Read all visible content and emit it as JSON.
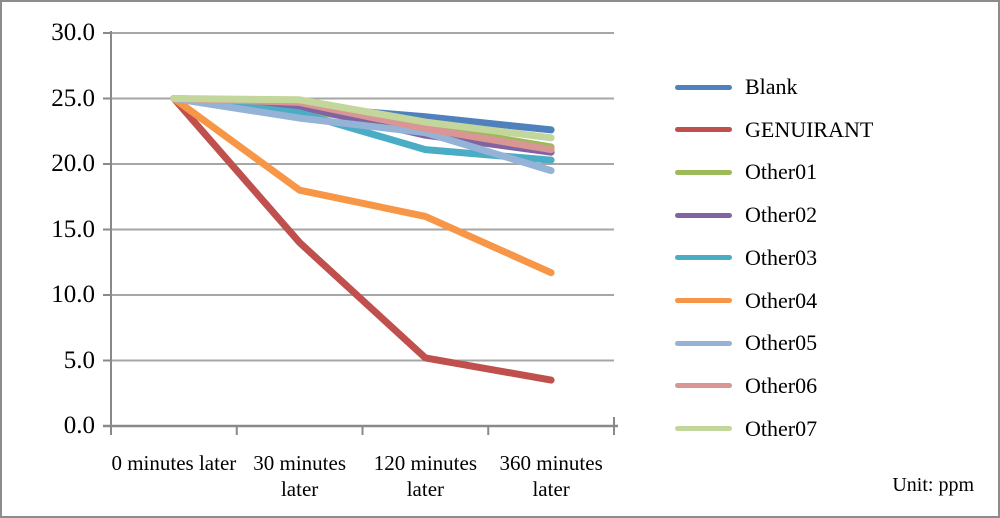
{
  "chart_data": {
    "type": "line",
    "title": "",
    "unit_note": "Unit: ppm",
    "categories": [
      "0 minutes later",
      "30 minutes later",
      "120 minutes later",
      "360 minutes later"
    ],
    "xlabel": "",
    "ylabel": "",
    "ylim": [
      0,
      30
    ],
    "y_ticks": [
      30,
      25,
      20,
      15,
      10,
      5,
      0
    ],
    "y_tick_labels": [
      "30.0",
      "25.0",
      "20.0",
      "15.0",
      "10.0",
      "5.0",
      "0.0"
    ],
    "grid": true,
    "legend_position": "right",
    "series": [
      {
        "name": "Blank",
        "color": "#4F81BD",
        "values": [
          25.0,
          24.4,
          23.6,
          22.6
        ]
      },
      {
        "name": "GENUIRANT",
        "color": "#C0504D",
        "values": [
          25.0,
          14.0,
          5.2,
          3.5
        ]
      },
      {
        "name": "Other01",
        "color": "#9BBB59",
        "values": [
          25.0,
          24.1,
          22.9,
          21.3
        ]
      },
      {
        "name": "Other02",
        "color": "#8064A2",
        "values": [
          25.0,
          24.4,
          22.2,
          20.9
        ]
      },
      {
        "name": "Other03",
        "color": "#4BACC6",
        "values": [
          25.0,
          23.9,
          21.1,
          20.3
        ]
      },
      {
        "name": "Other04",
        "color": "#F79646",
        "values": [
          25.0,
          18.0,
          16.0,
          11.7
        ]
      },
      {
        "name": "Other05",
        "color": "#95B3D7",
        "values": [
          25.0,
          23.5,
          22.4,
          19.5
        ]
      },
      {
        "name": "Other06",
        "color": "#D99694",
        "values": [
          25.0,
          24.7,
          22.7,
          21.1
        ]
      },
      {
        "name": "Other07",
        "color": "#C3D69B",
        "values": [
          25.0,
          24.9,
          23.2,
          22.0
        ]
      }
    ],
    "colors": {
      "axis": "#898989",
      "grid": "#A6A6A6",
      "text": "#000000",
      "frame_border": "#8C8C8C",
      "background": "#FFFFFF"
    }
  }
}
